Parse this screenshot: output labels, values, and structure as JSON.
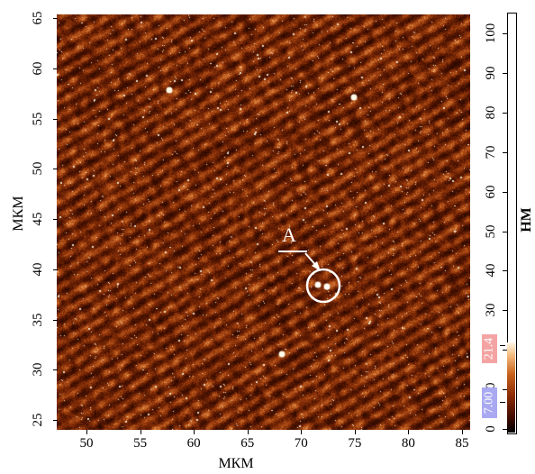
{
  "y_axis": {
    "label": "МКМ",
    "ticks": [
      "25",
      "30",
      "35",
      "40",
      "45",
      "50",
      "55",
      "60",
      "65"
    ]
  },
  "x_axis": {
    "label": "МКМ",
    "ticks": [
      "50",
      "55",
      "60",
      "65",
      "70",
      "75",
      "80",
      "85"
    ]
  },
  "colorbar": {
    "label": "НМ",
    "ticks": [
      "0",
      "10",
      "20",
      "30",
      "40",
      "50",
      "60",
      "70",
      "80",
      "90",
      "100"
    ],
    "high_marker": "21.4",
    "low_marker": "7.00",
    "high_marker_color": "#f4a3a3",
    "low_marker_color": "#a9a9f2"
  },
  "annotation": {
    "label": "A"
  },
  "colors": {
    "surface_dark": "#3a0c00",
    "surface_mid": "#a8400a",
    "surface_bright": "#ffe9c0"
  }
}
